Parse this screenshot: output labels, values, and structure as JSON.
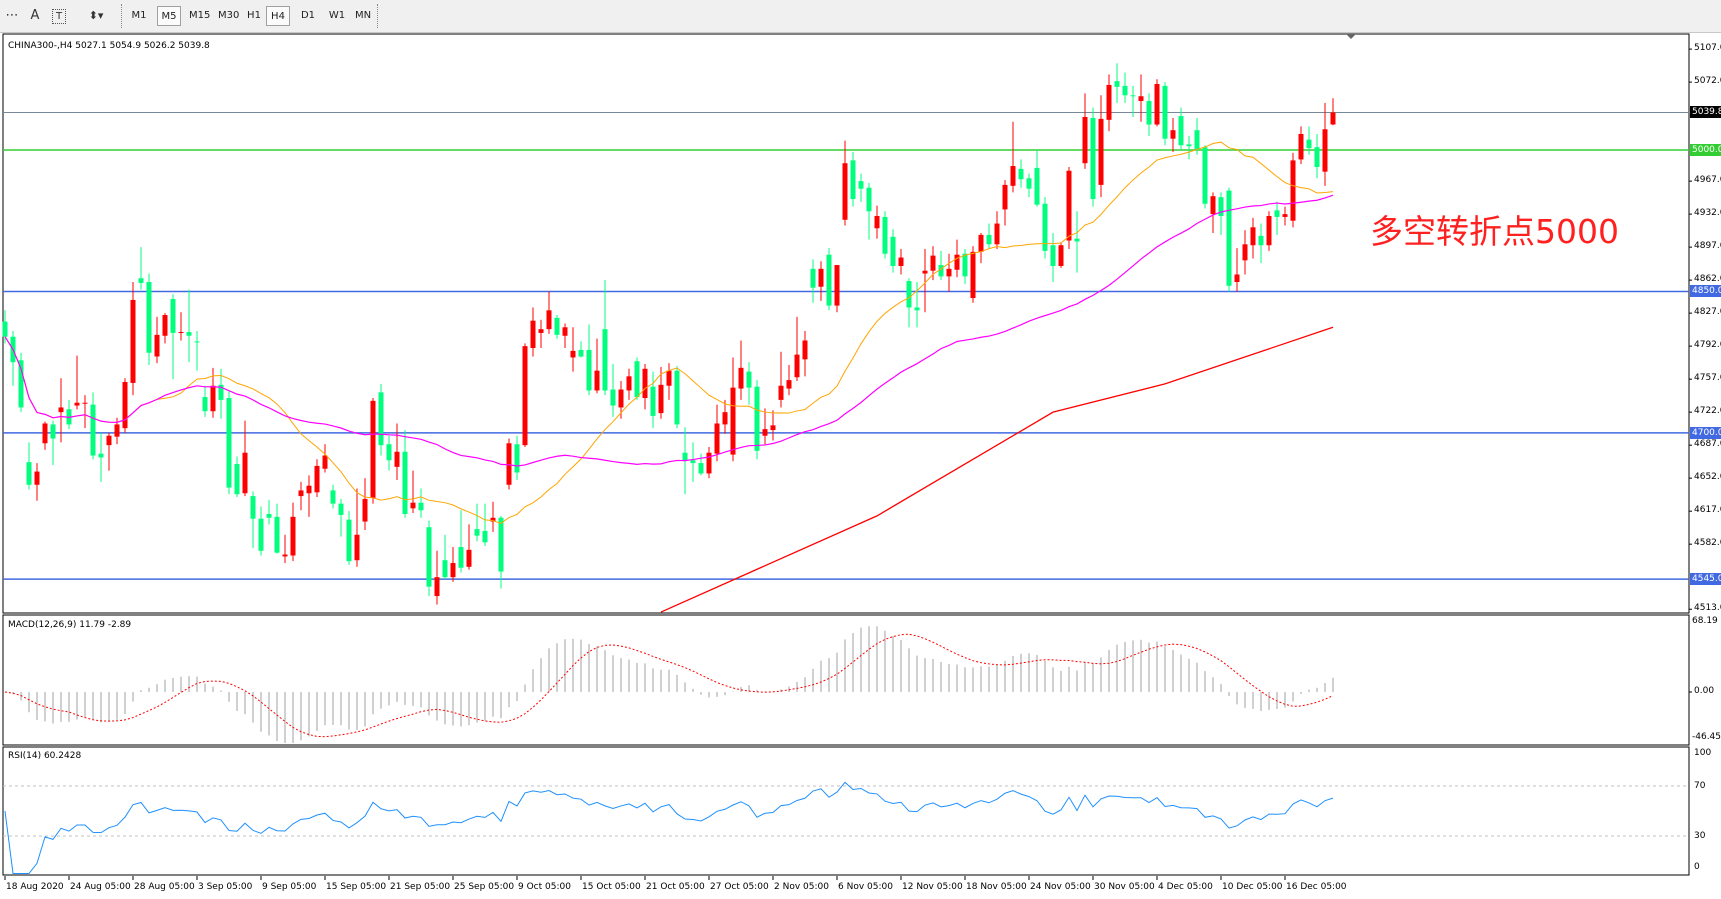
{
  "toolbar": {
    "tools": [
      {
        "icon": "period-separator-icon",
        "glyph": "⋯"
      },
      {
        "icon": "text-icon",
        "glyph": "A"
      },
      {
        "icon": "text-label-icon",
        "glyph": "T"
      },
      {
        "icon": "arrows-icon",
        "glyph": "⬍▾"
      }
    ],
    "timeframes": [
      "M1",
      "M5",
      "M15",
      "M30",
      "H1",
      "H4",
      "D1",
      "W1",
      "MN"
    ],
    "pressed": [
      "M5",
      "H4"
    ]
  },
  "header": {
    "info": "CHINA300-,H4  5027.1 5054.9 5026.2 5039.8"
  },
  "annotation": "多空转折点5000",
  "colors": {
    "bull": "#ff0000",
    "bear": "#00ff7f",
    "ma_fast": "#ffa500",
    "ma_mid": "#ff00ff",
    "ma_slow": "#ff0000",
    "level_blue": "#4169e1",
    "level_green": "#32cd32",
    "bid_line": "#778899",
    "rsi": "#1e90ff",
    "macd_hist": "#c0c0c0",
    "macd_signal": "#ff0000"
  },
  "chart_data": {
    "type": "candlestick",
    "symbol": "CHINA300-",
    "timeframe": "H4",
    "ohlc": [
      [
        4818,
        4830,
        4795,
        4802
      ],
      [
        4802,
        4808,
        4750,
        4775
      ],
      [
        4777,
        4785,
        4722,
        4727
      ],
      [
        4669,
        4690,
        4640,
        4645
      ],
      [
        4645,
        4668,
        4628,
        4659
      ],
      [
        4689,
        4712,
        4682,
        4710
      ],
      [
        4709,
        4713,
        4666,
        4694
      ],
      [
        4722,
        4758,
        4690,
        4727
      ],
      [
        4725,
        4735,
        4704,
        4709
      ],
      [
        4729,
        4782,
        4725,
        4732
      ],
      [
        4731,
        4740,
        4705,
        4732
      ],
      [
        4730,
        4743,
        4672,
        4676
      ],
      [
        4678,
        4700,
        4648,
        4674
      ],
      [
        4687,
        4700,
        4660,
        4697
      ],
      [
        4696,
        4716,
        4688,
        4709
      ],
      [
        4705,
        4758,
        4700,
        4754
      ],
      [
        4753,
        4860,
        4740,
        4841
      ],
      [
        4864,
        4897,
        4852,
        4859
      ],
      [
        4860,
        4869,
        4772,
        4785
      ],
      [
        4781,
        4823,
        4774,
        4804
      ],
      [
        4803,
        4827,
        4795,
        4825
      ],
      [
        4842,
        4847,
        4757,
        4806
      ],
      [
        4806,
        4828,
        4798,
        4807
      ],
      [
        4807,
        4852,
        4775,
        4803
      ],
      [
        4797,
        4808,
        4766,
        4796
      ],
      [
        4738,
        4750,
        4717,
        4723
      ],
      [
        4723,
        4769,
        4716,
        4750
      ],
      [
        4751,
        4768,
        4715,
        4735
      ],
      [
        4737,
        4745,
        4635,
        4642
      ],
      [
        4667,
        4675,
        4632,
        4635
      ],
      [
        4636,
        4713,
        4633,
        4679
      ],
      [
        4633,
        4638,
        4578,
        4609
      ],
      [
        4609,
        4622,
        4570,
        4575
      ],
      [
        4614,
        4629,
        4603,
        4610
      ],
      [
        4611,
        4625,
        4572,
        4573
      ],
      [
        4569,
        4592,
        4562,
        4571
      ],
      [
        4570,
        4626,
        4564,
        4611
      ],
      [
        4633,
        4648,
        4618,
        4639
      ],
      [
        4636,
        4655,
        4611,
        4644
      ],
      [
        4637,
        4672,
        4632,
        4665
      ],
      [
        4662,
        4688,
        4658,
        4676
      ],
      [
        4639,
        4645,
        4620,
        4625
      ],
      [
        4625,
        4630,
        4590,
        4613
      ],
      [
        4608,
        4617,
        4560,
        4564
      ],
      [
        4565,
        4641,
        4558,
        4592
      ],
      [
        4606,
        4652,
        4597,
        4630
      ],
      [
        4631,
        4737,
        4625,
        4734
      ],
      [
        4743,
        4752,
        4676,
        4687
      ],
      [
        4688,
        4697,
        4660,
        4671
      ],
      [
        4664,
        4710,
        4650,
        4680
      ],
      [
        4680,
        4703,
        4610,
        4614
      ],
      [
        4620,
        4660,
        4615,
        4626
      ],
      [
        4626,
        4641,
        4610,
        4618
      ],
      [
        4600,
        4607,
        4527,
        4537
      ],
      [
        4527,
        4575,
        4518,
        4547
      ],
      [
        4565,
        4592,
        4545,
        4547
      ],
      [
        4547,
        4579,
        4542,
        4562
      ],
      [
        4579,
        4618,
        4552,
        4557
      ],
      [
        4558,
        4603,
        4555,
        4576
      ],
      [
        4598,
        4625,
        4585,
        4591
      ],
      [
        4596,
        4625,
        4580,
        4584
      ],
      [
        4606,
        4627,
        4595,
        4610
      ],
      [
        4610,
        4612,
        4535,
        4553
      ],
      [
        4645,
        4694,
        4640,
        4689
      ],
      [
        4688,
        4697,
        4650,
        4658
      ],
      [
        4687,
        4795,
        4685,
        4792
      ],
      [
        4790,
        4833,
        4781,
        4819
      ],
      [
        4806,
        4820,
        4790,
        4810
      ],
      [
        4810,
        4850,
        4805,
        4830
      ],
      [
        4822,
        4825,
        4800,
        4804
      ],
      [
        4803,
        4816,
        4790,
        4812
      ],
      [
        4780,
        4812,
        4765,
        4787
      ],
      [
        4788,
        4797,
        4780,
        4781
      ],
      [
        4788,
        4815,
        4740,
        4745
      ],
      [
        4745,
        4800,
        4742,
        4766
      ],
      [
        4810,
        4862,
        4740,
        4745
      ],
      [
        4746,
        4773,
        4717,
        4729
      ],
      [
        4727,
        4755,
        4715,
        4746
      ],
      [
        4745,
        4768,
        4735,
        4760
      ],
      [
        4776,
        4780,
        4735,
        4738
      ],
      [
        4737,
        4773,
        4725,
        4768
      ],
      [
        4749,
        4765,
        4705,
        4718
      ],
      [
        4721,
        4770,
        4715,
        4751
      ],
      [
        4750,
        4774,
        4735,
        4766
      ],
      [
        4766,
        4771,
        4705,
        4709
      ],
      [
        4679,
        4706,
        4635,
        4671
      ],
      [
        4671,
        4690,
        4648,
        4668
      ],
      [
        4668,
        4678,
        4655,
        4657
      ],
      [
        4657,
        4685,
        4652,
        4679
      ],
      [
        4678,
        4730,
        4670,
        4710
      ],
      [
        4709,
        4735,
        4699,
        4722
      ],
      [
        4677,
        4780,
        4670,
        4748
      ],
      [
        4747,
        4798,
        4735,
        4769
      ],
      [
        4765,
        4775,
        4730,
        4748
      ],
      [
        4749,
        4756,
        4672,
        4681
      ],
      [
        4697,
        4726,
        4688,
        4704
      ],
      [
        4703,
        4724,
        4692,
        4708
      ],
      [
        4735,
        4786,
        4727,
        4750
      ],
      [
        4747,
        4772,
        4740,
        4756
      ],
      [
        4759,
        4823,
        4755,
        4783
      ],
      [
        4778,
        4808,
        4760,
        4798
      ],
      [
        4874,
        4884,
        4838,
        4854
      ],
      [
        4855,
        4882,
        4840,
        4874
      ],
      [
        4889,
        4896,
        4830,
        4835
      ],
      [
        4835,
        4878,
        4828,
        4878
      ],
      [
        4926,
        5010,
        4920,
        4986
      ],
      [
        4989,
        4998,
        4940,
        4948
      ],
      [
        4967,
        4975,
        4945,
        4959
      ],
      [
        4960,
        4965,
        4905,
        4935
      ],
      [
        4917,
        4941,
        4906,
        4930
      ],
      [
        4929,
        4935,
        4885,
        4890
      ],
      [
        4908,
        4916,
        4870,
        4877
      ],
      [
        4877,
        4895,
        4868,
        4886
      ],
      [
        4861,
        4864,
        4812,
        4833
      ],
      [
        4833,
        4860,
        4812,
        4830
      ],
      [
        4869,
        4895,
        4828,
        4872
      ],
      [
        4872,
        4898,
        4862,
        4888
      ],
      [
        4878,
        4893,
        4862,
        4866
      ],
      [
        4866,
        4890,
        4850,
        4874
      ],
      [
        4873,
        4905,
        4865,
        4889
      ],
      [
        4890,
        4895,
        4858,
        4866
      ],
      [
        4843,
        4898,
        4838,
        4892
      ],
      [
        4892,
        4912,
        4880,
        4910
      ],
      [
        4910,
        4922,
        4895,
        4900
      ],
      [
        4900,
        4935,
        4895,
        4922
      ],
      [
        4937,
        4968,
        4920,
        4963
      ],
      [
        4962,
        5030,
        4955,
        4983
      ],
      [
        4980,
        4990,
        4960,
        4969
      ],
      [
        4970,
        4975,
        4950,
        4959
      ],
      [
        4981,
        5000,
        4940,
        4942
      ],
      [
        4943,
        4950,
        4885,
        4893
      ],
      [
        4899,
        4912,
        4860,
        4877
      ],
      [
        4877,
        4902,
        4875,
        4899
      ],
      [
        4904,
        4982,
        4895,
        4978
      ],
      [
        4906,
        4935,
        4870,
        4903
      ],
      [
        4986,
        5060,
        4980,
        5035
      ],
      [
        5034,
        5045,
        4940,
        4948
      ],
      [
        4963,
        5058,
        4950,
        5033
      ],
      [
        5032,
        5080,
        5020,
        5069
      ],
      [
        5073,
        5092,
        5050,
        5067
      ],
      [
        5068,
        5082,
        5050,
        5058
      ],
      [
        5058,
        5068,
        5035,
        5057
      ],
      [
        5052,
        5080,
        5030,
        5057
      ],
      [
        5052,
        5060,
        5015,
        5027
      ],
      [
        5027,
        5075,
        5025,
        5070
      ],
      [
        5068,
        5072,
        5005,
        5012
      ],
      [
        5012,
        5034,
        4998,
        5021
      ],
      [
        5036,
        5045,
        5000,
        5005
      ],
      [
        5006,
        5015,
        4990,
        5004
      ],
      [
        5021,
        5034,
        4995,
        5000
      ],
      [
        5003,
        5005,
        4938,
        4943
      ],
      [
        4932,
        4955,
        4912,
        4951
      ],
      [
        4950,
        4955,
        4910,
        4930
      ],
      [
        4957,
        4960,
        4850,
        4856
      ],
      [
        4860,
        4896,
        4850,
        4868
      ],
      [
        4883,
        4915,
        4868,
        4900
      ],
      [
        4899,
        4928,
        4885,
        4918
      ],
      [
        4909,
        4922,
        4880,
        4899
      ],
      [
        4899,
        4935,
        4893,
        4930
      ],
      [
        4936,
        4945,
        4910,
        4929
      ],
      [
        4929,
        4940,
        4920,
        4932
      ],
      [
        4925,
        4997,
        4918,
        4989
      ],
      [
        4990,
        5025,
        4985,
        5017
      ],
      [
        5011,
        5025,
        4995,
        5002
      ],
      [
        5003,
        5017,
        4970,
        4982
      ],
      [
        4977,
        5050,
        4962,
        5022
      ],
      [
        5027.1,
        5054.9,
        5026.2,
        5039.8
      ]
    ],
    "ylim": [
      4513,
      5107
    ],
    "price_ticks": [
      "5107.0",
      "5072.0",
      "4967.0",
      "4932.0",
      "4897.0",
      "4862.0",
      "4827.0",
      "4792.0",
      "4757.0",
      "4722.0",
      "4687.0",
      "4652.0",
      "4617.0",
      "4582.0",
      "4513.0"
    ],
    "current_price": "5039.8",
    "levels": [
      {
        "value": 5000,
        "label": "5000.0",
        "color": "#32cd32"
      },
      {
        "value": 4850,
        "label": "4850.0",
        "color": "#4169e1"
      },
      {
        "value": 4700,
        "label": "4700.0",
        "color": "#4169e1"
      },
      {
        "value": 4545,
        "label": "4545.0",
        "color": "#4169e1"
      }
    ],
    "moving_averages": {
      "fast_period": 20,
      "mid_period": 55,
      "slow_points": [
        [
          82,
          4510
        ],
        [
          109,
          4612
        ],
        [
          131,
          4722
        ],
        [
          145,
          4752
        ],
        [
          166,
          4812
        ]
      ]
    },
    "date_labels": [
      "18 Aug 2020",
      "24 Aug 05:00",
      "28 Aug 05:00",
      "3 Sep 05:00",
      "9 Sep 05:00",
      "15 Sep 05:00",
      "21 Sep 05:00",
      "25 Sep 05:00",
      "9 Oct 05:00",
      "15 Oct 05:00",
      "21 Oct 05:00",
      "27 Oct 05:00",
      "2 Nov 05:00",
      "6 Nov 05:00",
      "12 Nov 05:00",
      "18 Nov 05:00",
      "24 Nov 05:00",
      "30 Nov 05:00",
      "4 Dec 05:00",
      "10 Dec 05:00",
      "16 Dec 05:00"
    ],
    "macd": {
      "label": "MACD(12,26,9) 11.79 -2.89",
      "max": "68.19",
      "zero": "0.00",
      "min": "-46.45",
      "ylim": [
        -46.45,
        68.19
      ]
    },
    "rsi": {
      "label": "RSI(14) 60.2428",
      "ticks": [
        "100",
        "70",
        "30",
        "0"
      ],
      "levels": [
        70,
        30
      ]
    }
  }
}
